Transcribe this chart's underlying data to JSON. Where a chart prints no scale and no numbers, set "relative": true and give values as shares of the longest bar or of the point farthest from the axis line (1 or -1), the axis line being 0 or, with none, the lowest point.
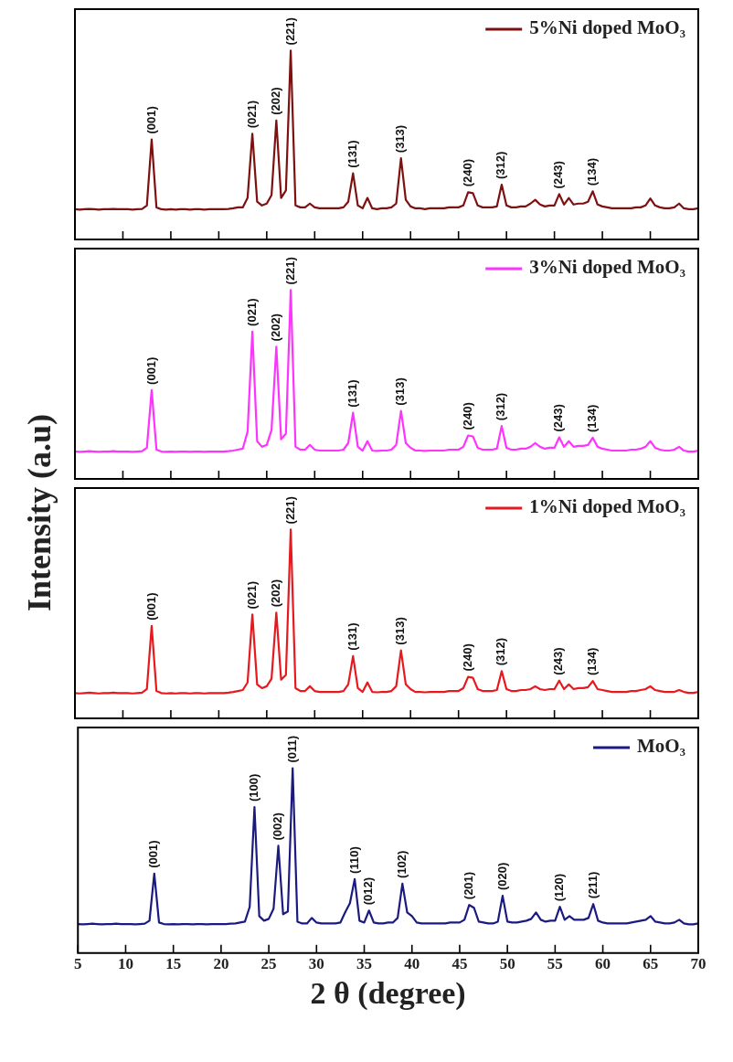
{
  "chart_data": [
    {
      "type": "line",
      "relative": true,
      "ylabel": "Intensity (a.u)",
      "tick_labels": false,
      "legend": "top right",
      "categories": [
        null,
        null,
        null,
        null,
        null,
        null,
        null,
        null,
        null,
        null,
        null,
        null,
        null,
        null,
        null,
        null,
        null,
        null,
        null,
        null,
        null,
        null,
        null,
        null,
        null,
        null,
        null,
        null,
        null,
        null,
        null,
        null,
        null,
        null,
        null,
        null,
        null,
        null,
        null,
        null,
        null,
        null,
        null,
        null,
        null,
        null,
        null,
        null,
        null,
        null,
        null,
        null,
        null,
        null,
        null,
        null,
        null,
        null,
        null,
        null,
        null,
        null,
        null,
        null,
        null,
        null,
        null,
        null,
        null,
        null,
        null,
        null,
        null,
        null,
        null,
        null,
        null,
        null,
        null,
        null,
        null,
        null,
        null,
        null,
        null,
        null,
        null,
        null,
        null,
        null,
        null,
        null,
        null,
        null,
        null,
        null,
        null,
        null,
        null,
        null,
        null,
        null,
        null,
        null,
        null,
        null,
        null,
        null,
        null,
        null,
        null,
        null,
        null,
        null,
        null,
        null,
        null,
        null,
        null,
        null,
        null,
        null,
        null,
        null,
        null,
        null,
        null,
        null,
        null,
        null,
        null
      ],
      "series": [
        {
          "name": "5%Ni doped MoO₃",
          "color": "#7f1010",
          "values": [
            0.16,
            0.158,
            0.16,
            0.162,
            0.16,
            0.158,
            0.16,
            0.16,
            0.162,
            0.16,
            0.16,
            0.16,
            0.158,
            0.16,
            0.162,
            0.18,
            0.53,
            0.17,
            0.16,
            0.158,
            0.16,
            0.158,
            0.16,
            0.16,
            0.158,
            0.16,
            0.16,
            0.158,
            0.16,
            0.16,
            0.16,
            0.16,
            0.162,
            0.165,
            0.17,
            0.17,
            0.22,
            0.56,
            0.2,
            0.18,
            0.19,
            0.235,
            0.63,
            0.22,
            0.26,
            1.0,
            0.18,
            0.17,
            0.17,
            0.19,
            0.17,
            0.165,
            0.165,
            0.165,
            0.165,
            0.165,
            0.17,
            0.2,
            0.35,
            0.18,
            0.165,
            0.22,
            0.165,
            0.16,
            0.165,
            0.165,
            0.17,
            0.19,
            0.43,
            0.21,
            0.175,
            0.165,
            0.165,
            0.16,
            0.165,
            0.165,
            0.165,
            0.165,
            0.17,
            0.17,
            0.17,
            0.18,
            0.25,
            0.245,
            0.18,
            0.17,
            0.17,
            0.17,
            0.175,
            0.29,
            0.18,
            0.17,
            0.17,
            0.175,
            0.175,
            0.19,
            0.21,
            0.185,
            0.175,
            0.18,
            0.18,
            0.24,
            0.185,
            0.22,
            0.185,
            0.19,
            0.19,
            0.2,
            0.255,
            0.185,
            0.175,
            0.17,
            0.165,
            0.165,
            0.165,
            0.165,
            0.165,
            0.17,
            0.17,
            0.18,
            0.217,
            0.18,
            0.17,
            0.165,
            0.165,
            0.17,
            0.19,
            0.165,
            0.16,
            0.16,
            0.165
          ]
        }
      ],
      "annotations": [
        {
          "text": "(001)",
          "y": 0.53
        },
        {
          "text": "(021)",
          "y": 0.56
        },
        {
          "text": "(202)",
          "y": 0.63
        },
        {
          "text": "(221)",
          "y": 1.0
        },
        {
          "text": "(131)",
          "y": 0.35
        },
        {
          "text": "(313)",
          "y": 0.43
        },
        {
          "text": "(240)",
          "y": 0.25
        },
        {
          "text": "(312)",
          "y": 0.29
        },
        {
          "text": "(243)",
          "y": 0.24
        },
        {
          "text": "(134)",
          "y": 0.255
        }
      ]
    },
    {
      "type": "line",
      "relative": true,
      "tick_labels": false,
      "legend": "top right",
      "categories": [
        null,
        null,
        null,
        null,
        null,
        null,
        null,
        null,
        null,
        null,
        null,
        null,
        null,
        null,
        null,
        null,
        null,
        null,
        null,
        null,
        null,
        null,
        null,
        null,
        null,
        null,
        null,
        null,
        null,
        null,
        null,
        null,
        null,
        null,
        null,
        null,
        null,
        null,
        null,
        null,
        null,
        null,
        null,
        null,
        null,
        null,
        null,
        null,
        null,
        null,
        null,
        null,
        null,
        null,
        null,
        null,
        null,
        null,
        null,
        null,
        null,
        null,
        null,
        null,
        null,
        null,
        null,
        null,
        null,
        null,
        null,
        null,
        null,
        null,
        null,
        null,
        null,
        null,
        null,
        null,
        null,
        null,
        null,
        null,
        null,
        null,
        null,
        null,
        null,
        null,
        null,
        null,
        null,
        null,
        null,
        null,
        null,
        null,
        null,
        null,
        null,
        null,
        null,
        null,
        null,
        null,
        null,
        null,
        null,
        null,
        null,
        null,
        null,
        null,
        null,
        null,
        null,
        null,
        null,
        null,
        null,
        null,
        null,
        null,
        null,
        null,
        null,
        null,
        null,
        null,
        null
      ],
      "series": [
        {
          "name": "3%Ni doped MoO₃",
          "color": "#ff33ff",
          "values": [
            0.145,
            0.143,
            0.145,
            0.147,
            0.145,
            0.143,
            0.145,
            0.145,
            0.147,
            0.145,
            0.145,
            0.145,
            0.143,
            0.145,
            0.147,
            0.165,
            0.47,
            0.155,
            0.145,
            0.143,
            0.145,
            0.143,
            0.145,
            0.145,
            0.143,
            0.145,
            0.145,
            0.143,
            0.145,
            0.145,
            0.145,
            0.145,
            0.147,
            0.15,
            0.155,
            0.16,
            0.25,
            0.78,
            0.2,
            0.17,
            0.18,
            0.26,
            0.7,
            0.21,
            0.24,
            1.0,
            0.17,
            0.155,
            0.155,
            0.18,
            0.155,
            0.15,
            0.15,
            0.15,
            0.15,
            0.15,
            0.155,
            0.19,
            0.35,
            0.17,
            0.15,
            0.2,
            0.15,
            0.148,
            0.15,
            0.15,
            0.155,
            0.18,
            0.36,
            0.19,
            0.165,
            0.15,
            0.15,
            0.148,
            0.15,
            0.15,
            0.15,
            0.15,
            0.155,
            0.155,
            0.155,
            0.17,
            0.23,
            0.225,
            0.165,
            0.155,
            0.155,
            0.155,
            0.16,
            0.28,
            0.165,
            0.155,
            0.155,
            0.16,
            0.16,
            0.17,
            0.19,
            0.17,
            0.16,
            0.165,
            0.165,
            0.22,
            0.17,
            0.2,
            0.17,
            0.175,
            0.175,
            0.18,
            0.218,
            0.17,
            0.16,
            0.155,
            0.15,
            0.15,
            0.15,
            0.15,
            0.155,
            0.155,
            0.16,
            0.17,
            0.2,
            0.165,
            0.155,
            0.15,
            0.15,
            0.155,
            0.17,
            0.15,
            0.145,
            0.145,
            0.15
          ]
        }
      ],
      "annotations": [
        {
          "text": "(001)",
          "y": 0.47
        },
        {
          "text": "(021)",
          "y": 0.78
        },
        {
          "text": "(202)",
          "y": 0.7
        },
        {
          "text": "(221)",
          "y": 1.0
        },
        {
          "text": "(131)",
          "y": 0.35
        },
        {
          "text": "(313)",
          "y": 0.36
        },
        {
          "text": "(240)",
          "y": 0.23
        },
        {
          "text": "(312)",
          "y": 0.28
        },
        {
          "text": "(243)",
          "y": 0.22
        },
        {
          "text": "(134)",
          "y": 0.218
        }
      ]
    },
    {
      "type": "line",
      "relative": true,
      "tick_labels": false,
      "legend": "top right",
      "categories": [
        null,
        null,
        null,
        null,
        null,
        null,
        null,
        null,
        null,
        null,
        null,
        null,
        null,
        null,
        null,
        null,
        null,
        null,
        null,
        null,
        null,
        null,
        null,
        null,
        null,
        null,
        null,
        null,
        null,
        null,
        null,
        null,
        null,
        null,
        null,
        null,
        null,
        null,
        null,
        null,
        null,
        null,
        null,
        null,
        null,
        null,
        null,
        null,
        null,
        null,
        null,
        null,
        null,
        null,
        null,
        null,
        null,
        null,
        null,
        null,
        null,
        null,
        null,
        null,
        null,
        null,
        null,
        null,
        null,
        null,
        null,
        null,
        null,
        null,
        null,
        null,
        null,
        null,
        null,
        null,
        null,
        null,
        null,
        null,
        null,
        null,
        null,
        null,
        null,
        null,
        null,
        null,
        null,
        null,
        null,
        null,
        null,
        null,
        null,
        null,
        null,
        null,
        null,
        null,
        null,
        null,
        null,
        null,
        null,
        null,
        null,
        null,
        null,
        null,
        null,
        null,
        null,
        null,
        null,
        null,
        null,
        null,
        null,
        null,
        null,
        null,
        null,
        null,
        null,
        null,
        null
      ],
      "series": [
        {
          "name": "1%Ni doped MoO₃",
          "color": "#e8191e",
          "values": [
            0.134,
            0.132,
            0.134,
            0.136,
            0.134,
            0.132,
            0.134,
            0.134,
            0.136,
            0.134,
            0.134,
            0.134,
            0.132,
            0.134,
            0.136,
            0.155,
            0.49,
            0.145,
            0.134,
            0.132,
            0.134,
            0.132,
            0.134,
            0.134,
            0.132,
            0.134,
            0.134,
            0.132,
            0.134,
            0.134,
            0.134,
            0.134,
            0.136,
            0.14,
            0.145,
            0.15,
            0.19,
            0.55,
            0.18,
            0.16,
            0.17,
            0.21,
            0.56,
            0.205,
            0.23,
            1.0,
            0.16,
            0.145,
            0.145,
            0.17,
            0.145,
            0.14,
            0.14,
            0.14,
            0.14,
            0.14,
            0.145,
            0.18,
            0.33,
            0.16,
            0.14,
            0.19,
            0.14,
            0.138,
            0.14,
            0.14,
            0.145,
            0.17,
            0.36,
            0.18,
            0.155,
            0.14,
            0.14,
            0.138,
            0.14,
            0.14,
            0.14,
            0.14,
            0.145,
            0.145,
            0.145,
            0.16,
            0.22,
            0.215,
            0.155,
            0.145,
            0.145,
            0.145,
            0.15,
            0.25,
            0.155,
            0.145,
            0.145,
            0.15,
            0.15,
            0.155,
            0.17,
            0.155,
            0.15,
            0.155,
            0.155,
            0.2,
            0.155,
            0.18,
            0.155,
            0.16,
            0.16,
            0.165,
            0.198,
            0.155,
            0.15,
            0.145,
            0.14,
            0.14,
            0.14,
            0.14,
            0.145,
            0.145,
            0.15,
            0.155,
            0.17,
            0.15,
            0.145,
            0.14,
            0.14,
            0.14,
            0.15,
            0.14,
            0.135,
            0.135,
            0.14
          ]
        }
      ],
      "annotations": [
        {
          "text": "(001)",
          "y": 0.49
        },
        {
          "text": "(021)",
          "y": 0.55
        },
        {
          "text": "(202)",
          "y": 0.56
        },
        {
          "text": "(221)",
          "y": 1.0
        },
        {
          "text": "(131)",
          "y": 0.33
        },
        {
          "text": "(313)",
          "y": 0.36
        },
        {
          "text": "(240)",
          "y": 0.22
        },
        {
          "text": "(312)",
          "y": 0.25
        },
        {
          "text": "(243)",
          "y": 0.2
        },
        {
          "text": "(134)",
          "y": 0.198
        }
      ]
    },
    {
      "type": "line",
      "relative": true,
      "xlabel": "2 θ (degree)",
      "xlim": [
        5,
        70
      ],
      "xticks": [
        5,
        10,
        15,
        20,
        25,
        30,
        35,
        40,
        45,
        50,
        55,
        60,
        65,
        70
      ],
      "tick_labels": "x",
      "legend": "top right",
      "x": [
        5,
        5.5,
        6,
        6.5,
        7,
        7.5,
        8,
        8.5,
        9,
        9.5,
        10,
        10.5,
        11,
        11.5,
        12,
        12.5,
        13,
        13.5,
        14,
        14.5,
        15,
        15.5,
        16,
        16.5,
        17,
        17.5,
        18,
        18.5,
        19,
        19.5,
        20,
        20.5,
        21,
        21.5,
        22,
        22.5,
        23,
        23.5,
        24,
        24.5,
        25,
        25.5,
        26,
        26.5,
        27,
        27.5,
        28,
        28.5,
        29,
        29.5,
        30,
        30.5,
        31,
        31.5,
        32,
        32.5,
        33,
        33.5,
        34,
        34.5,
        35,
        35.5,
        36,
        36.5,
        37,
        37.5,
        38,
        38.5,
        39,
        39.5,
        40,
        40.5,
        41,
        41.5,
        42,
        42.5,
        43,
        43.5,
        44,
        44.5,
        45,
        45.5,
        46,
        46.5,
        47,
        47.5,
        48,
        48.5,
        49,
        49.5,
        50,
        50.5,
        51,
        51.5,
        52,
        52.5,
        53,
        53.5,
        54,
        54.5,
        55,
        55.5,
        56,
        56.5,
        57,
        57.5,
        58,
        58.5,
        59,
        59.5,
        60,
        60.5,
        61,
        61.5,
        62,
        62.5,
        63,
        63.5,
        64,
        64.5,
        65,
        65.5,
        66,
        66.5,
        67,
        67.5,
        68,
        68.5,
        69,
        69.5,
        70
      ],
      "series": [
        {
          "name": "MoO₃",
          "color": "#1a1a80",
          "values": [
            0.157,
            0.155,
            0.157,
            0.159,
            0.157,
            0.155,
            0.157,
            0.157,
            0.159,
            0.157,
            0.157,
            0.157,
            0.155,
            0.157,
            0.159,
            0.175,
            0.43,
            0.165,
            0.157,
            0.155,
            0.157,
            0.155,
            0.157,
            0.157,
            0.155,
            0.157,
            0.157,
            0.155,
            0.157,
            0.157,
            0.157,
            0.157,
            0.159,
            0.16,
            0.165,
            0.17,
            0.25,
            0.79,
            0.2,
            0.175,
            0.185,
            0.24,
            0.58,
            0.21,
            0.225,
            1.0,
            0.17,
            0.16,
            0.16,
            0.19,
            0.165,
            0.16,
            0.16,
            0.16,
            0.16,
            0.165,
            0.22,
            0.27,
            0.4,
            0.175,
            0.165,
            0.23,
            0.165,
            0.16,
            0.16,
            0.165,
            0.165,
            0.19,
            0.375,
            0.22,
            0.2,
            0.165,
            0.16,
            0.16,
            0.16,
            0.16,
            0.16,
            0.16,
            0.165,
            0.165,
            0.165,
            0.18,
            0.26,
            0.245,
            0.17,
            0.165,
            0.16,
            0.16,
            0.17,
            0.31,
            0.17,
            0.165,
            0.165,
            0.17,
            0.175,
            0.185,
            0.22,
            0.18,
            0.17,
            0.175,
            0.175,
            0.25,
            0.18,
            0.2,
            0.18,
            0.18,
            0.18,
            0.19,
            0.265,
            0.175,
            0.165,
            0.16,
            0.16,
            0.16,
            0.16,
            0.16,
            0.165,
            0.17,
            0.175,
            0.18,
            0.2,
            0.17,
            0.165,
            0.16,
            0.16,
            0.165,
            0.18,
            0.16,
            0.155,
            0.155,
            0.16
          ]
        }
      ],
      "annotations": [
        {
          "text": "(001)",
          "x": 13,
          "y": 0.43
        },
        {
          "text": "(100)",
          "x": 23.5,
          "y": 0.79
        },
        {
          "text": "(002)",
          "x": 26,
          "y": 0.58
        },
        {
          "text": "(011)",
          "x": 27.5,
          "y": 1.0
        },
        {
          "text": "(110)",
          "x": 34,
          "y": 0.4
        },
        {
          "text": "(012)",
          "x": 35.5,
          "y": 0.23
        },
        {
          "text": "(102)",
          "x": 39,
          "y": 0.375
        },
        {
          "text": "(201)",
          "x": 46,
          "y": 0.26
        },
        {
          "text": "(020)",
          "x": 49.5,
          "y": 0.31
        },
        {
          "text": "(120)",
          "x": 55.5,
          "y": 0.25
        },
        {
          "text": "(211)",
          "x": 59,
          "y": 0.265
        }
      ]
    }
  ]
}
